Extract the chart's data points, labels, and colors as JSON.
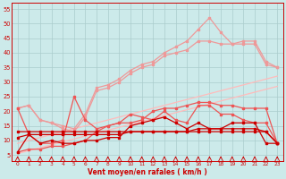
{
  "x": [
    0,
    1,
    2,
    3,
    4,
    5,
    6,
    7,
    8,
    9,
    10,
    11,
    12,
    13,
    14,
    15,
    16,
    17,
    18,
    19,
    20,
    21,
    22,
    23
  ],
  "trend1": [
    5.5,
    6.5,
    7.5,
    8.5,
    9.5,
    10.5,
    11.5,
    12.5,
    13.5,
    14.5,
    15.5,
    16.5,
    17.5,
    18.5,
    19.5,
    20.5,
    21.5,
    22.5,
    23.5,
    24.5,
    25.5,
    26.5,
    27.5,
    28.5
  ],
  "trend2": [
    9,
    10,
    11,
    12,
    13,
    14,
    15,
    16,
    17,
    18,
    19,
    20,
    21,
    22,
    23,
    24,
    25,
    26,
    27,
    28,
    29,
    30,
    31,
    32
  ],
  "line_upper_light": [
    21,
    22,
    17,
    16,
    14,
    13,
    18,
    27,
    28,
    30,
    33,
    35,
    36,
    39,
    40,
    41,
    44,
    44,
    43,
    43,
    43,
    43,
    36,
    35
  ],
  "line_upper_mid": [
    21,
    22,
    17,
    16,
    15,
    14,
    19,
    28,
    29,
    31,
    34,
    36,
    37,
    40,
    42,
    44,
    48,
    52,
    47,
    43,
    44,
    44,
    37,
    35
  ],
  "line_mid1": [
    6,
    7,
    7,
    8,
    8,
    9,
    10,
    13,
    15,
    16,
    16,
    17,
    20,
    21,
    21,
    22,
    23,
    23,
    22,
    22,
    21,
    21,
    21,
    9
  ],
  "line_mid2": [
    21,
    12,
    9,
    9,
    10,
    25,
    17,
    14,
    15,
    16,
    19,
    18,
    17,
    20,
    17,
    16,
    22,
    22,
    19,
    19,
    17,
    16,
    16,
    9
  ],
  "line_low1": [
    6,
    12,
    9,
    10,
    9,
    9,
    10,
    10,
    11,
    11,
    15,
    16,
    17,
    18,
    16,
    14,
    16,
    14,
    14,
    16,
    16,
    16,
    9,
    9
  ],
  "line_low2": [
    11,
    12,
    12,
    12,
    12,
    12,
    12,
    12,
    12,
    12,
    13,
    13,
    13,
    13,
    13,
    13,
    13,
    13,
    13,
    13,
    13,
    13,
    13,
    9
  ],
  "line_low3": [
    13,
    13,
    13,
    13,
    13,
    13,
    13,
    13,
    13,
    13,
    13,
    13,
    13,
    13,
    13,
    13,
    14,
    14,
    14,
    14,
    14,
    14,
    13,
    9
  ],
  "bg_color": "#cceaea",
  "grid_color": "#aacccc",
  "color_dark": "#cc0000",
  "color_mid": "#ee5555",
  "color_light": "#ee9999",
  "color_vlight": "#ffbbbb",
  "xlabel": "Vent moyen/en rafales ( km/h )",
  "yticks": [
    5,
    10,
    15,
    20,
    25,
    30,
    35,
    40,
    45,
    50,
    55
  ],
  "ylim": [
    3,
    57
  ],
  "xlim": [
    -0.5,
    23.5
  ]
}
